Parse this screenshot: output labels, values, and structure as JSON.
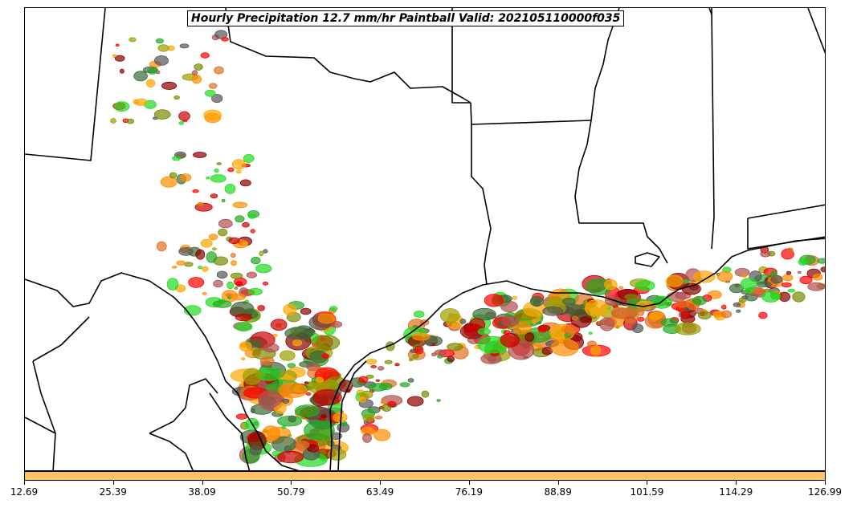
{
  "title": "Hourly Precipitation 12.7 mm/hr Paintball Valid: 202105110000f035",
  "colorbar": {
    "color": "#ffc266",
    "ticks": [
      "12.69",
      "25.39",
      "38.09",
      "50.79",
      "63.49",
      "76.19",
      "88.89",
      "101.59",
      "114.29",
      "126.99"
    ]
  },
  "member_colors": [
    "#ff0000",
    "#cc0000",
    "#8b0000",
    "#ff8c00",
    "#e07020",
    "#ffa500",
    "#9aa000",
    "#7a8a00",
    "#1fdc1f",
    "#22a822",
    "#3a6b3a",
    "#555555",
    "#b05050"
  ]
}
